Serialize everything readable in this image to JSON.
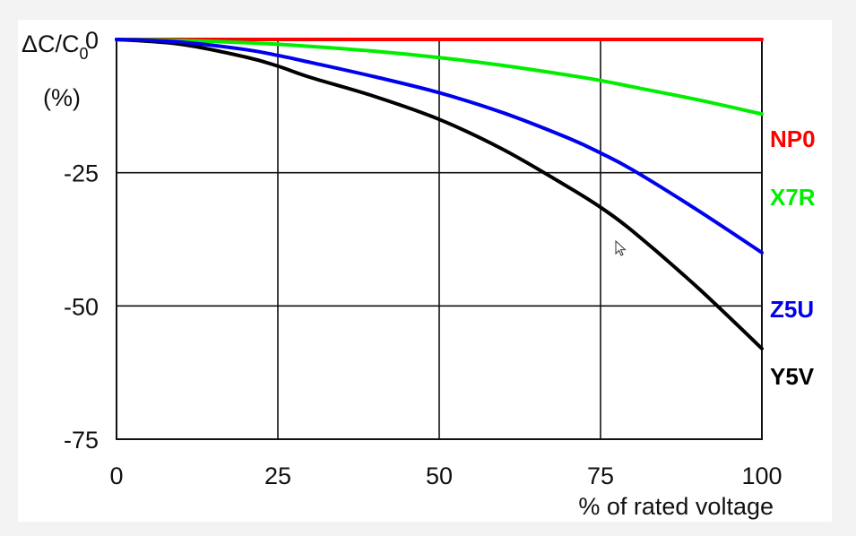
{
  "chart_data": {
    "type": "line",
    "ylabel_main": "ΔC/C",
    "ylabel_sub": "0",
    "ylabel_unit": "(%)",
    "xlabel": "% of rated voltage",
    "xlim": [
      0,
      100
    ],
    "ylim": [
      -75,
      0
    ],
    "x_ticks": [
      0,
      25,
      50,
      75,
      100
    ],
    "y_ticks": [
      0,
      -25,
      -50,
      -75
    ],
    "x_tick_labels": [
      "0",
      "25",
      "50",
      "75",
      "100"
    ],
    "y_tick_labels": [
      "0",
      "-25",
      "-50",
      "-75"
    ],
    "grid": true,
    "legend": "inline-right",
    "x": [
      0,
      10,
      20,
      25,
      30,
      40,
      50,
      60,
      70,
      75,
      80,
      90,
      100
    ],
    "series": [
      {
        "name": "NP0",
        "color": "#ff0000",
        "values": [
          0,
          0,
          0,
          0,
          0,
          0,
          0,
          0,
          0,
          0,
          0,
          0,
          0
        ]
      },
      {
        "name": "X7R",
        "color": "#00ee00",
        "values": [
          0,
          -0.2,
          -0.6,
          -0.9,
          -1.3,
          -2.2,
          -3.4,
          -4.9,
          -6.7,
          -7.7,
          -8.9,
          -11.3,
          -14
        ]
      },
      {
        "name": "Z5U",
        "color": "#0000ee",
        "values": [
          0,
          -0.5,
          -1.9,
          -3,
          -4.3,
          -7,
          -10,
          -13.8,
          -18.5,
          -21.3,
          -24.5,
          -32,
          -40
        ]
      },
      {
        "name": "Y5V",
        "color": "#000000",
        "values": [
          0,
          -0.9,
          -3.3,
          -5,
          -7.1,
          -10.7,
          -15,
          -20.7,
          -27.7,
          -31.5,
          -36,
          -46.5,
          -58
        ]
      }
    ]
  }
}
